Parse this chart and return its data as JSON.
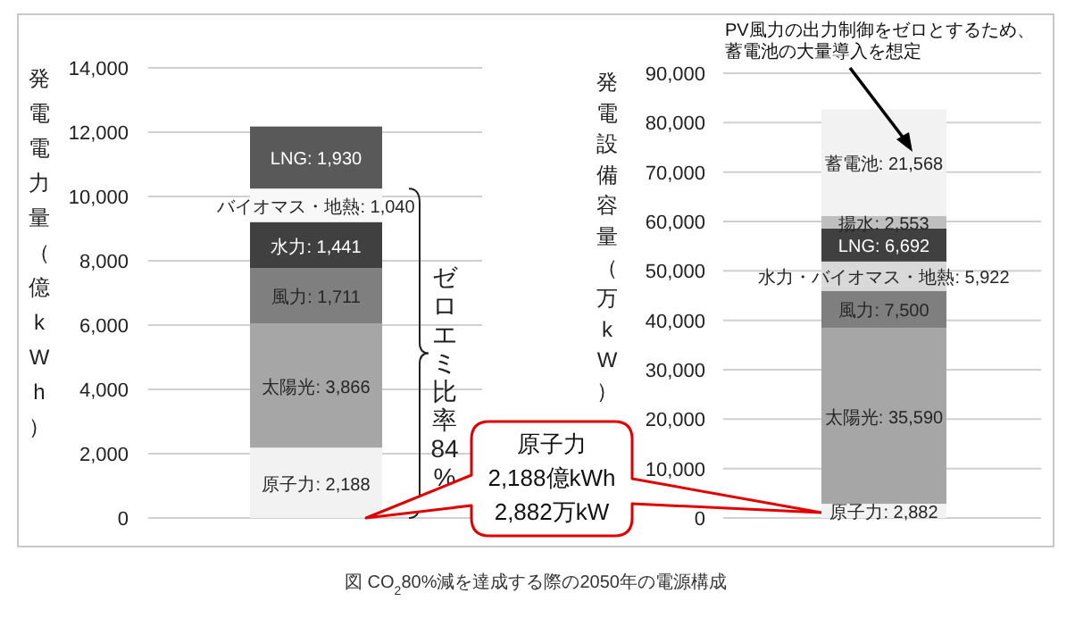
{
  "chart_data": [
    {
      "type": "bar",
      "stacked": true,
      "ylabel": "発電電力量（億kWh）",
      "categories": [
        null
      ],
      "ylim": [
        0,
        14000
      ],
      "yticks": [
        {
          "value": 0,
          "label": "0"
        },
        {
          "value": 2000,
          "label": "2,000"
        },
        {
          "value": 4000,
          "label": "4,000"
        },
        {
          "value": 6000,
          "label": "6,000"
        },
        {
          "value": 8000,
          "label": "8,000"
        },
        {
          "value": 10000,
          "label": "10,000"
        },
        {
          "value": 12000,
          "label": "12,000"
        },
        {
          "value": 14000,
          "label": "14,000"
        }
      ],
      "grid": "y",
      "series": [
        {
          "color": "#f2f2f2",
          "values": [
            2188
          ],
          "value_labels": [
            "原子力: 2,188"
          ]
        },
        {
          "color": "#a6a6a6",
          "values": [
            3866
          ],
          "value_labels": [
            "太陽光: 3,866"
          ]
        },
        {
          "color": "#7f7f7f",
          "values": [
            1711
          ],
          "value_labels": [
            "風力: 1,711"
          ]
        },
        {
          "color": "#404040",
          "values": [
            1441
          ],
          "value_labels": [
            "水力: 1,441"
          ]
        },
        {
          "color": "#f8f8f8",
          "values": [
            1040
          ],
          "value_labels": [
            "バイオマス・地熱: 1,040"
          ]
        },
        {
          "color": "#595959",
          "values": [
            1930
          ],
          "value_labels": [
            "LNG: 1,930"
          ]
        }
      ],
      "annotations": [
        "ゼロエミ比率84%",
        "原子力\n2,188億kWh\n2,882万kW",
        "図 CO$_{2}$80%減を達成する際の2050年の電源構成"
      ]
    },
    {
      "type": "bar",
      "stacked": true,
      "ylabel": "発電設備容量（万kW）",
      "categories": [
        null
      ],
      "ylim": [
        0,
        90000
      ],
      "yticks": [
        {
          "value": 0,
          "label": "0"
        },
        {
          "value": 10000,
          "label": "10,000"
        },
        {
          "value": 20000,
          "label": "20,000"
        },
        {
          "value": 30000,
          "label": "30,000"
        },
        {
          "value": 40000,
          "label": "40,000"
        },
        {
          "value": 50000,
          "label": "50,000"
        },
        {
          "value": 60000,
          "label": "60,000"
        },
        {
          "value": 70000,
          "label": "70,000"
        },
        {
          "value": 80000,
          "label": "80,000"
        },
        {
          "value": 90000,
          "label": "90,000"
        }
      ],
      "grid": "y",
      "series": [
        {
          "color": "#f2f2f2",
          "values": [
            2882
          ],
          "value_labels": [
            "原子力: 2,882"
          ]
        },
        {
          "color": "#a6a6a6",
          "values": [
            35590
          ],
          "value_labels": [
            "太陽光: 35,590"
          ]
        },
        {
          "color": "#7f7f7f",
          "values": [
            7500
          ],
          "value_labels": [
            "風力: 7,500"
          ]
        },
        {
          "color": "#d9d9d9",
          "values": [
            5922
          ],
          "value_labels": [
            "水力・バイオマス・地熱: 5,922"
          ]
        },
        {
          "color": "#404040",
          "values": [
            6692
          ],
          "value_labels": [
            "LNG: 6,692"
          ]
        },
        {
          "color": "#bfbfbf",
          "values": [
            2553
          ],
          "value_labels": [
            "揚水: 2,553"
          ]
        },
        {
          "color": "#f2f2f2",
          "values": [
            21568
          ],
          "value_labels": [
            "蓄電池: 21,568"
          ]
        }
      ],
      "annotations": [
        "PV風力の出力制御をゼロとするため、蓄電池の大量導入を想定"
      ]
    }
  ]
}
